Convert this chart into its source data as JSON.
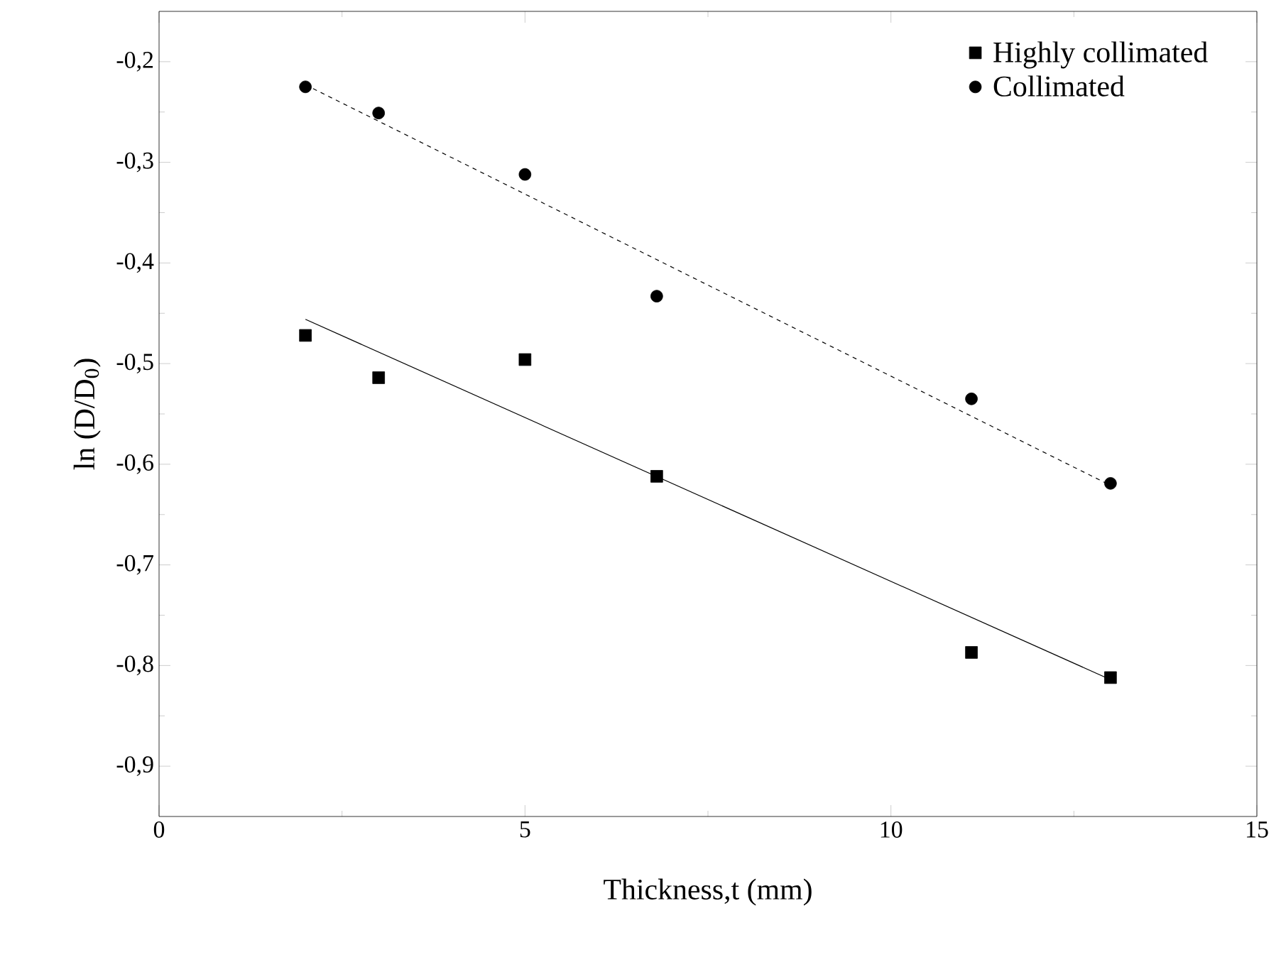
{
  "chart_data": {
    "type": "scatter",
    "xlabel": "Thickness,t (mm)",
    "ylabel": "ln (D/D$_{0}$)",
    "xlim": [
      0,
      15
    ],
    "xticks": [
      0,
      5,
      10,
      15
    ],
    "ylim": [
      -0.95,
      -0.15
    ],
    "yticks": [
      {
        "value": -0.9,
        "label": "-0,9"
      },
      {
        "value": -0.8,
        "label": "-0,8"
      },
      {
        "value": -0.7,
        "label": "-0,7"
      },
      {
        "value": -0.6,
        "label": "-0,6"
      },
      {
        "value": -0.5,
        "label": "-0,5"
      },
      {
        "value": -0.4,
        "label": "-0,4"
      },
      {
        "value": -0.3,
        "label": "-0,3"
      },
      {
        "value": -0.2,
        "label": "-0,2"
      }
    ],
    "legend": "top right",
    "series": [
      {
        "name": "Highly collimated",
        "marker": "square",
        "color": "#000000",
        "x": [
          2,
          3,
          5,
          6.8,
          11.1,
          13
        ],
        "values": [
          -0.472,
          -0.514,
          -0.496,
          -0.612,
          -0.787,
          -0.812
        ]
      },
      {
        "name": "Collimated",
        "marker": "circle",
        "color": "#000000",
        "x": [
          2,
          3,
          5,
          6.8,
          11.1,
          13
        ],
        "values": [
          -0.225,
          -0.251,
          -0.312,
          -0.433,
          -0.535,
          -0.619
        ]
      },
      {
        "type": "line",
        "marker": "none",
        "line_style": "solid",
        "color": "#000000",
        "x": [
          2,
          13
        ],
        "values": [
          -0.456,
          -0.814
        ]
      },
      {
        "type": "line",
        "marker": "none",
        "line_style": "dashed",
        "color": "#000000",
        "x": [
          2,
          13
        ],
        "values": [
          -0.223,
          -0.621
        ]
      }
    ]
  }
}
